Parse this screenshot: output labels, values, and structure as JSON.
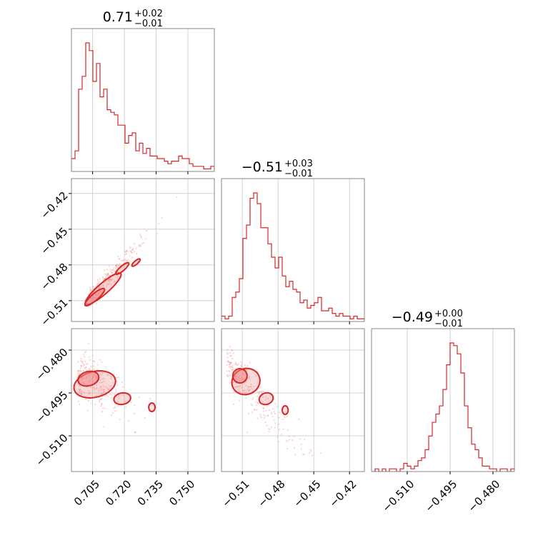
{
  "colors": {
    "accent": "#d62728",
    "fill": "#f08080",
    "grid": "#c8c8c8",
    "axis": "#888888"
  },
  "chart_data": {
    "type": "corner",
    "parameters": [
      {
        "title_main": "0.71",
        "title_plus": "+0.02",
        "title_minus": "−0.01",
        "range": [
          0.695,
          0.7625
        ],
        "ticks": [
          0.705,
          0.72,
          0.735,
          0.75
        ],
        "tick_labels": [
          "0.705",
          "0.720",
          "0.735",
          "0.750"
        ]
      },
      {
        "title_main": "−0.51",
        "title_plus": "+0.03",
        "title_minus": "−0.01",
        "range": [
          -0.5275,
          -0.4075
        ],
        "ticks": [
          -0.51,
          -0.48,
          -0.45,
          -0.42
        ],
        "tick_labels": [
          "−0.51",
          "−0.48",
          "−0.45",
          "−0.42"
        ]
      },
      {
        "title_main": "−0.49",
        "title_plus": "+0.00",
        "title_minus": "−0.01",
        "range": [
          -0.5225,
          -0.4725
        ],
        "ticks": [
          -0.51,
          -0.495,
          -0.48
        ],
        "tick_labels": [
          "−0.510",
          "−0.495",
          "−0.480"
        ]
      }
    ],
    "histograms": [
      {
        "bins": 40,
        "counts": [
          10,
          16,
          64,
          74,
          100,
          94,
          70,
          84,
          58,
          64,
          48,
          46,
          44,
          36,
          36,
          22,
          28,
          30,
          16,
          22,
          14,
          18,
          12,
          12,
          10,
          10,
          8,
          6,
          8,
          8,
          12,
          10,
          10,
          6,
          4,
          4,
          4,
          2,
          2,
          4
        ]
      },
      {
        "bins": 40,
        "counts": [
          4,
          2,
          4,
          18,
          22,
          32,
          62,
          72,
          92,
          96,
          88,
          70,
          70,
          58,
          48,
          40,
          48,
          34,
          26,
          30,
          24,
          22,
          14,
          16,
          10,
          12,
          14,
          18,
          8,
          8,
          10,
          6,
          4,
          6,
          4,
          4,
          2,
          4,
          2,
          2
        ]
      },
      {
        "bins": 40,
        "counts": [
          0,
          2,
          0,
          2,
          0,
          2,
          2,
          0,
          2,
          6,
          4,
          2,
          4,
          8,
          10,
          16,
          26,
          36,
          42,
          48,
          60,
          78,
          94,
          92,
          86,
          72,
          48,
          32,
          20,
          16,
          10,
          4,
          4,
          2,
          2,
          0,
          2,
          2,
          0,
          2
        ]
      }
    ],
    "grid": true
  }
}
